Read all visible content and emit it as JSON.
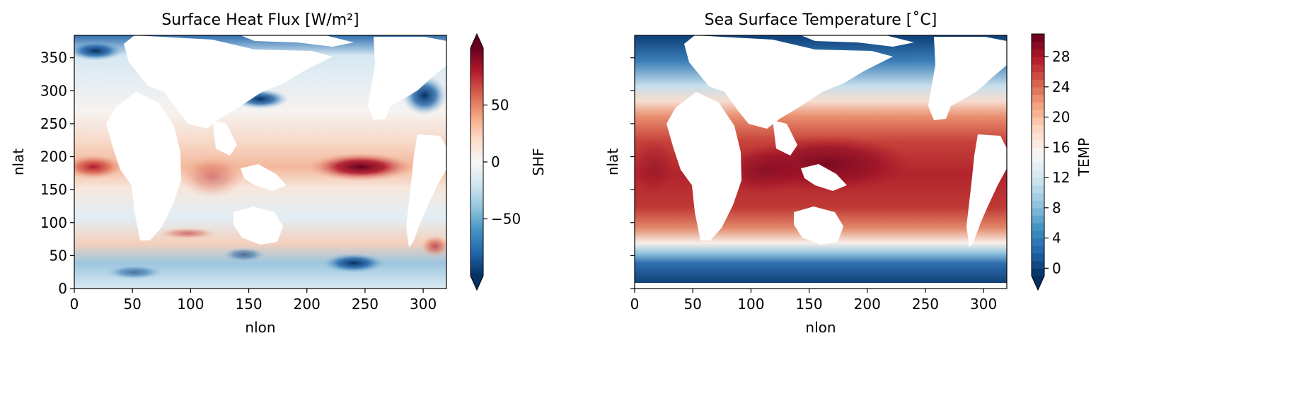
{
  "chart_data": [
    {
      "type": "heatmap",
      "title": "Surface Heat Flux [W/m²]",
      "xlabel": "nlon",
      "ylabel": "nlat",
      "xlim": [
        0,
        320
      ],
      "ylim": [
        0,
        384
      ],
      "xticks": [
        0,
        50,
        100,
        150,
        200,
        250,
        300
      ],
      "yticks": [
        0,
        50,
        100,
        150,
        200,
        250,
        300,
        350
      ],
      "colorbar": {
        "label": "SHF",
        "range": [
          -100,
          100
        ],
        "ticks": [
          -50,
          0,
          50
        ],
        "tick_labels": [
          "−50",
          "0",
          "50"
        ],
        "extend": "both",
        "colormap": "RdBu_r",
        "discrete": false
      },
      "notes_data": {
        "pattern": "positive flux (red) along equatorial bands, peak ~+90 near nlon 225-275 / nlat ~185; negative (blue) in western boundary currents and southern ocean / high latitudes"
      }
    },
    {
      "type": "heatmap",
      "title": "Sea Surface Temperature [˚C]",
      "xlabel": "nlon",
      "ylabel": "nlat",
      "xlim": [
        0,
        320
      ],
      "ylim": [
        0,
        384
      ],
      "xticks": [
        0,
        50,
        100,
        150,
        200,
        250,
        300
      ],
      "yticks": [
        0,
        50,
        100,
        150,
        200,
        250,
        300,
        350
      ],
      "colorbar": {
        "label": "TEMP",
        "range": [
          -1,
          31
        ],
        "ticks": [
          0,
          4,
          8,
          12,
          16,
          20,
          24,
          28
        ],
        "tick_labels": [
          "0",
          "4",
          "8",
          "12",
          "16",
          "20",
          "24",
          "28"
        ],
        "extend": "min",
        "colormap": "RdBu_r",
        "discrete": true,
        "levels": 32
      },
      "notes_data": {
        "pattern": "warm (~29-30) in tropical band nlat ~120-230, peak near nlon 160-180; cold (~0) south of nlat ~60 and north of nlat ~330"
      }
    }
  ]
}
